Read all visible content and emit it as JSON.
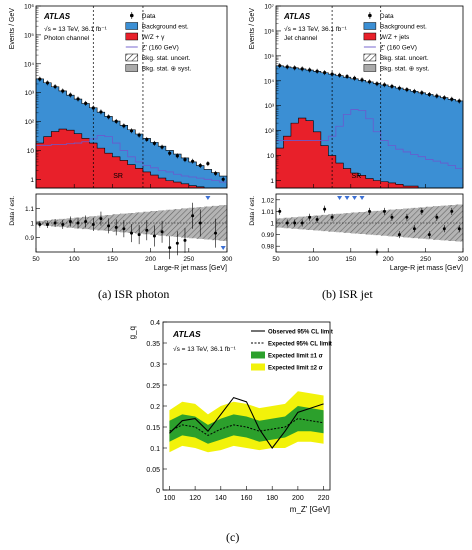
{
  "captions": {
    "a_tag": "(a)",
    "a_text": "ISR photon",
    "b_tag": "(b)",
    "b_text": "ISR jet",
    "c_tag": "(c)"
  },
  "chart_data": [
    {
      "type": "area",
      "panel": "ISR photon",
      "atlas": "ATLAS",
      "energy": "√s = 13 TeV,  36.1 fb⁻¹",
      "channel": "Photon channel",
      "ylabel": "Events / GeV",
      "xlabel": "Large-R jet mass [GeV]",
      "ratio_ylabel": "Data / est.",
      "yscale": "log",
      "ylim": [
        0.5,
        1000000
      ],
      "xlim": [
        50,
        300
      ],
      "sr_label": "SR",
      "sr_lines": [
        125,
        190
      ],
      "legend": [
        "Data",
        "Background est.",
        "W/Z + γ",
        "Z' (160 GeV)",
        "Bkg. stat. uncert.",
        "Bkg. stat. ⊕ syst."
      ],
      "x": [
        55,
        65,
        75,
        85,
        95,
        105,
        115,
        125,
        135,
        145,
        155,
        165,
        175,
        185,
        195,
        205,
        215,
        225,
        235,
        245,
        255,
        265,
        275,
        285,
        295
      ],
      "background": [
        3000,
        2200,
        1600,
        1150,
        820,
        600,
        420,
        300,
        210,
        150,
        104,
        74,
        52,
        37,
        26,
        19,
        14,
        10,
        7.5,
        5.5,
        4.0,
        3.0,
        2.2,
        1.7,
        1.3
      ],
      "wz": [
        18,
        30,
        45,
        55,
        50,
        38,
        26,
        18,
        12,
        8,
        6,
        4.5,
        3.2,
        2.4,
        1.8,
        1.4,
        1.1,
        0.9,
        0.8,
        0.7,
        0.6,
        0.55,
        0.5,
        0.5,
        0.5
      ],
      "zprime": [
        15,
        15,
        16,
        16,
        17,
        18,
        20,
        25,
        33,
        30,
        18,
        10,
        6,
        4,
        3,
        2.5,
        2,
        1.8,
        1.5,
        1.3,
        1.2,
        1.1,
        1,
        0.9,
        0.8
      ],
      "data": [
        2950,
        2180,
        1610,
        1140,
        830,
        605,
        425,
        295,
        215,
        145,
        101,
        71,
        48,
        34,
        24,
        17.5,
        13,
        8,
        6.5,
        4.8,
        4.2,
        3.0,
        3.5,
        1.6,
        1.0
      ],
      "ratio": [
        0.99,
        0.99,
        1.0,
        0.99,
        1.01,
        1.0,
        1.01,
        0.99,
        1.03,
        0.98,
        0.97,
        0.96,
        0.93,
        0.92,
        0.95,
        0.91,
        0.94,
        0.83,
        0.86,
        0.88,
        1.05,
        1.0,
        1.3,
        0.93,
        0.72
      ],
      "ratio_ylim": [
        0.8,
        1.2
      ],
      "ratio_ticks": [
        0.9,
        1,
        1.1
      ],
      "xticks": [
        50,
        100,
        150,
        200,
        250,
        300
      ],
      "yticks_major": [
        "1",
        "10",
        "10²",
        "10³",
        "10⁴",
        "10⁵",
        "10⁶"
      ]
    },
    {
      "type": "area",
      "panel": "ISR jet",
      "atlas": "ATLAS",
      "energy": "√s = 13 TeV,  36.1 fb⁻¹",
      "channel": "Jet channel",
      "ylabel": "Events / GeV",
      "xlabel": "Large-R jet mass [GeV]",
      "ratio_ylabel": "Data / est.",
      "yscale": "log",
      "ylim": [
        0.5,
        10000000
      ],
      "xlim": [
        50,
        300
      ],
      "sr_label": "SR",
      "sr_lines": [
        125,
        190
      ],
      "legend": [
        "Data",
        "Background est.",
        "W/Z + jets",
        "Z' (160 GeV)",
        "Bkg. stat. uncert.",
        "Bkg. stat. ⊕ syst."
      ],
      "x": [
        55,
        65,
        75,
        85,
        95,
        105,
        115,
        125,
        135,
        145,
        155,
        165,
        175,
        185,
        195,
        205,
        215,
        225,
        235,
        245,
        255,
        265,
        275,
        285,
        295
      ],
      "background": [
        40000,
        36000,
        33000,
        30000,
        27000,
        24000,
        21000,
        18500,
        16000,
        14000,
        12000,
        10500,
        9000,
        7800,
        6800,
        5900,
        5100,
        4400,
        3800,
        3300,
        2850,
        2450,
        2100,
        1800,
        1550
      ],
      "wz": [
        20,
        60,
        200,
        320,
        250,
        90,
        25,
        10,
        5,
        3,
        2,
        1.6,
        1.2,
        1,
        0.9,
        0.8,
        0.7,
        0.6,
        0.6,
        0.5,
        0.5,
        0.5,
        0.5,
        0.5,
        0.5
      ],
      "zprime": [
        40,
        40,
        40,
        40,
        40,
        40,
        40,
        60,
        150,
        450,
        700,
        650,
        300,
        90,
        40,
        25,
        18,
        14,
        11,
        9,
        7,
        6,
        5,
        4,
        3
      ],
      "data": [
        40400,
        36100,
        32900,
        30200,
        27200,
        24100,
        21300,
        18600,
        16700,
        14900,
        12600,
        10900,
        9100,
        7600,
        6900,
        5950,
        5050,
        4420,
        3780,
        3330,
        2830,
        2460,
        2090,
        1820,
        1540
      ],
      "ratio": [
        1.01,
        1.0,
        1.0,
        1.0,
        1.005,
        1.003,
        1.012,
        1.005,
        1.045,
        1.06,
        1.05,
        1.04,
        1.01,
        0.975,
        1.01,
        1.005,
        0.99,
        1.005,
        0.995,
        1.01,
        0.99,
        1.005,
        0.995,
        1.01,
        0.995
      ],
      "ratio_ylim": [
        0.975,
        1.025
      ],
      "ratio_ticks": [
        0.98,
        0.99,
        1,
        1.01,
        1.02
      ],
      "xticks": [
        50,
        100,
        150,
        200,
        250,
        300
      ],
      "yticks_major": [
        "1",
        "10",
        "10²",
        "10³",
        "10⁴",
        "10⁵",
        "10⁶",
        "10⁷"
      ]
    },
    {
      "type": "line",
      "panel": "(c)",
      "atlas": "ATLAS",
      "energy": "√s = 13 TeV, 36.1 fb⁻¹",
      "ylabel": "g_q",
      "xlabel": "m_Z' [GeV]",
      "xlim": [
        95,
        225
      ],
      "ylim": [
        0,
        0.4
      ],
      "xticks": [
        100,
        120,
        140,
        160,
        180,
        200,
        220
      ],
      "yticks": [
        0,
        0.05,
        0.1,
        0.15,
        0.2,
        0.25,
        0.3,
        0.35,
        0.4
      ],
      "legend": [
        "Observed 95% CL limit",
        "Expected 95% CL limit",
        "Expected limit ±1 σ",
        "Expected limit ±2 σ"
      ],
      "colors": {
        "band1": "#2ca02c",
        "band2": "#f2f20a",
        "observed": "#000000"
      },
      "x": [
        100,
        110,
        120,
        130,
        140,
        150,
        160,
        170,
        180,
        190,
        200,
        210,
        220
      ],
      "observed": [
        0.135,
        0.165,
        0.17,
        0.14,
        0.18,
        0.22,
        0.21,
        0.145,
        0.1,
        0.14,
        0.185,
        0.195,
        0.205
      ],
      "expected": [
        0.14,
        0.155,
        0.15,
        0.13,
        0.145,
        0.155,
        0.15,
        0.14,
        0.145,
        0.15,
        0.17,
        0.165,
        0.16
      ],
      "minus1": [
        0.115,
        0.13,
        0.125,
        0.11,
        0.12,
        0.13,
        0.125,
        0.115,
        0.12,
        0.125,
        0.14,
        0.14,
        0.135
      ],
      "plus1": [
        0.165,
        0.18,
        0.175,
        0.155,
        0.17,
        0.18,
        0.175,
        0.165,
        0.17,
        0.175,
        0.2,
        0.195,
        0.19
      ],
      "minus2": [
        0.09,
        0.105,
        0.1,
        0.09,
        0.095,
        0.105,
        0.1,
        0.095,
        0.1,
        0.1,
        0.115,
        0.115,
        0.11
      ],
      "plus2": [
        0.19,
        0.21,
        0.205,
        0.18,
        0.2,
        0.21,
        0.205,
        0.195,
        0.2,
        0.205,
        0.235,
        0.23,
        0.225
      ]
    }
  ]
}
